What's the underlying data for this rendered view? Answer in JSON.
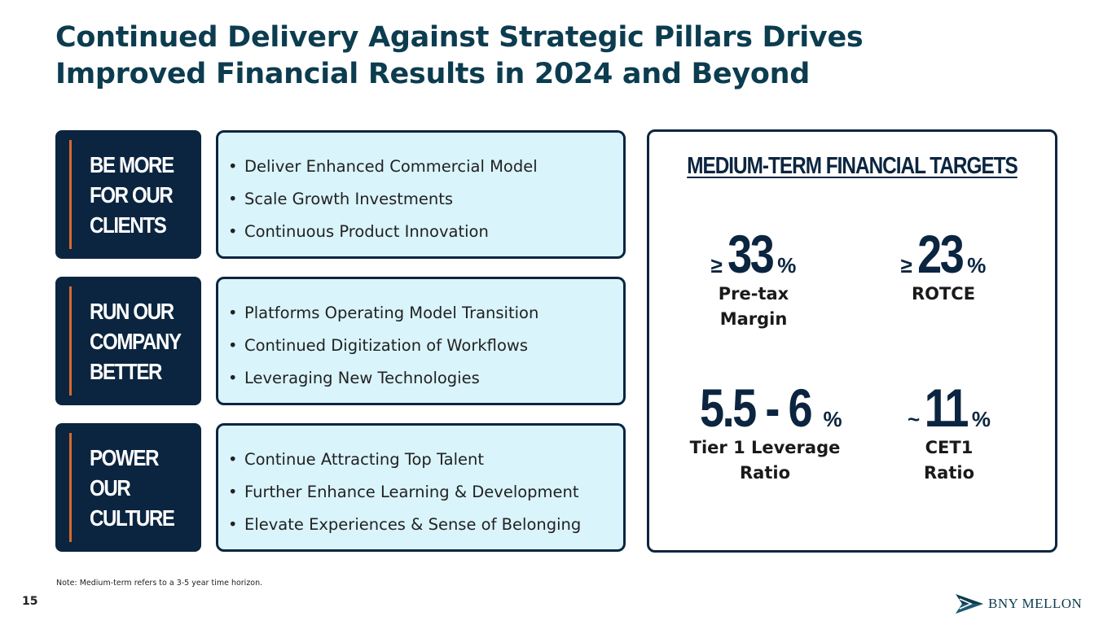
{
  "title": {
    "line1": "Continued Delivery Against Strategic Pillars Drives",
    "line2": "Improved Financial Results in 2024 and Beyond"
  },
  "pillars": [
    {
      "label": [
        "BE MORE",
        "FOR OUR",
        "CLIENTS"
      ],
      "bullets": [
        "Deliver Enhanced Commercial Model",
        "Scale Growth Investments",
        "Continuous Product Innovation"
      ]
    },
    {
      "label": [
        "RUN OUR",
        "COMPANY",
        "BETTER"
      ],
      "bullets": [
        "Platforms Operating Model Transition",
        "Continued Digitization of Workflows",
        "Leveraging New Technologies"
      ]
    },
    {
      "label": [
        "POWER",
        "OUR",
        "CULTURE"
      ],
      "bullets": [
        "Continue Attracting Top Talent",
        "Further Enhance Learning & Development",
        "Elevate Experiences & Sense of Belonging"
      ]
    }
  ],
  "targets": {
    "title": "MEDIUM-TERM FINANCIAL TARGETS",
    "items": [
      {
        "prefix": "≥",
        "value": "33",
        "suffix": "%",
        "label": [
          "Pre-tax",
          "Margin"
        ]
      },
      {
        "prefix": "≥",
        "value": "23",
        "suffix": "%",
        "label": [
          "ROTCE"
        ]
      },
      {
        "prefix": "",
        "value": "5.5 - 6",
        "suffix": "%",
        "label": [
          "Tier 1 Leverage",
          "Ratio"
        ]
      },
      {
        "prefix": "~",
        "value": "11",
        "suffix": "%",
        "label": [
          "CET1",
          "Ratio"
        ]
      }
    ]
  },
  "footer": {
    "note": "Note: Medium-term refers to a 3-5 year time horizon.",
    "page_number": "15",
    "logo_text": "BNY MELLON"
  },
  "colors": {
    "title": "#0c3c4f",
    "navy": "#0b2540",
    "accent_orange": "#d9682c",
    "box_fill": "#d9f4fb",
    "box_border": "#0b2540",
    "white": "#ffffff"
  }
}
